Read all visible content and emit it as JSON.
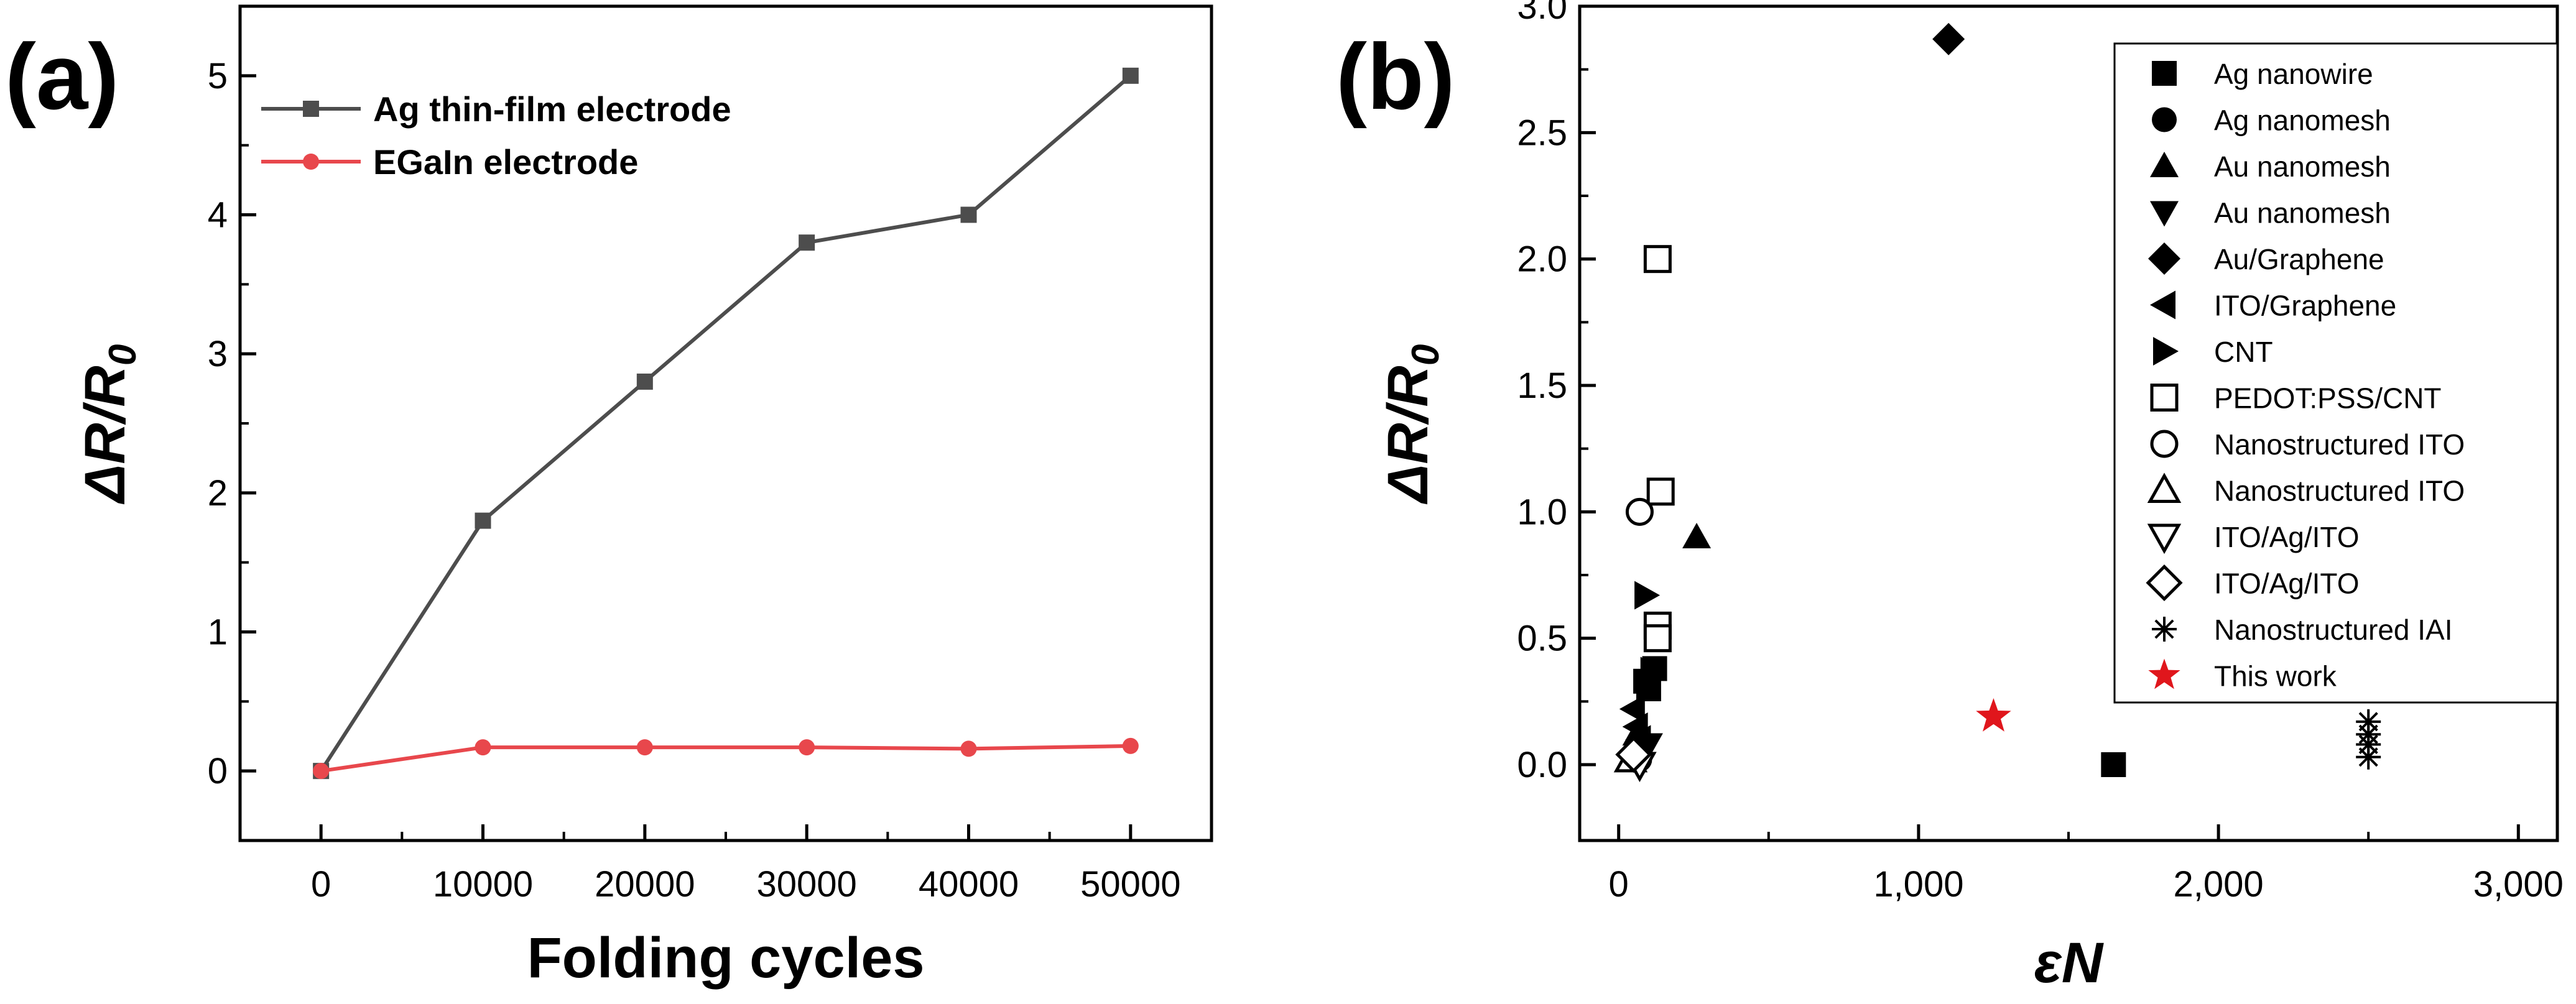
{
  "panels": {
    "a": {
      "label": "(a)"
    },
    "b": {
      "label": "(b)"
    }
  },
  "chart_data": [
    {
      "type": "line",
      "panel": "(a)",
      "xlabel": "Folding cycles",
      "ylabel": "ΔR/R0",
      "ylabel_parts": {
        "delta": "Δ",
        "R": "R",
        "slash": "/",
        "R0": "R",
        "sub": "0"
      },
      "xlim": [
        -5000,
        55000
      ],
      "ylim": [
        -0.5,
        5.5
      ],
      "x": [
        0,
        10000,
        20000,
        30000,
        40000,
        50000
      ],
      "xticks": [
        0,
        10000,
        20000,
        30000,
        40000,
        50000
      ],
      "xtick_labels": [
        "0",
        "10000",
        "20000",
        "30000",
        "40000",
        "50000"
      ],
      "yticks": [
        0,
        1,
        2,
        3,
        4,
        5
      ],
      "ytick_labels": [
        "0",
        "1",
        "2",
        "3",
        "4",
        "5"
      ],
      "legend_position": "top-left",
      "grid": false,
      "series": [
        {
          "name": "Ag thin-film electrode",
          "color": "#4d4d4d",
          "marker": "square",
          "values": [
            0,
            1.8,
            2.8,
            3.8,
            4.0,
            5.0
          ]
        },
        {
          "name": "EGaIn electrode",
          "color": "#e8474c",
          "marker": "circle",
          "values": [
            0,
            0.17,
            0.17,
            0.17,
            0.16,
            0.18
          ]
        }
      ]
    },
    {
      "type": "scatter",
      "panel": "(b)",
      "xlabel": "εN",
      "ylabel": "ΔR/R0",
      "ylabel_parts": {
        "delta": "Δ",
        "R": "R",
        "slash": "/",
        "R0": "R",
        "sub": "0"
      },
      "xlim": [
        -130,
        3130
      ],
      "ylim": [
        -0.3,
        3.0
      ],
      "xticks": [
        0,
        1000,
        2000,
        3000
      ],
      "xtick_labels": [
        "0",
        "1,000",
        "2,000",
        "3,000"
      ],
      "yticks": [
        0,
        0.5,
        1.0,
        1.5,
        2.0,
        2.5,
        3.0
      ],
      "ytick_labels": [
        "0.0",
        "0.5",
        "1.0",
        "1.5",
        "2.0",
        "2.5",
        "3.0"
      ],
      "legend_position": "top-right",
      "grid": false,
      "series": [
        {
          "name": "Ag nanowire",
          "marker": "square-filled",
          "color": "#000000",
          "points": [
            [
              120,
              0.38
            ],
            [
              90,
              0.33
            ],
            [
              100,
              0.3
            ],
            [
              1650,
              0.0
            ]
          ]
        },
        {
          "name": "Ag nanomesh",
          "marker": "circle-filled",
          "color": "#000000",
          "points": [
            [
              60,
              0.06
            ],
            [
              70,
              0.02
            ]
          ]
        },
        {
          "name": "Au nanomesh",
          "marker": "triangle-up-filled",
          "color": "#000000",
          "points": [
            [
              260,
              0.9
            ],
            [
              60,
              0.12
            ]
          ]
        },
        {
          "name": "Au nanomesh",
          "marker": "triangle-down-filled",
          "color": "#000000",
          "points": [
            [
              80,
              0.05
            ],
            [
              100,
              0.08
            ]
          ]
        },
        {
          "name": "Au/Graphene",
          "marker": "diamond-filled",
          "color": "#000000",
          "points": [
            [
              1100,
              2.87
            ]
          ]
        },
        {
          "name": "ITO/Graphene",
          "marker": "triangle-left-filled",
          "color": "#000000",
          "points": [
            [
              50,
              0.22
            ],
            [
              60,
              0.15
            ],
            [
              70,
              0.1
            ]
          ]
        },
        {
          "name": "CNT",
          "marker": "triangle-right-filled",
          "color": "#000000",
          "points": [
            [
              90,
              0.67
            ],
            [
              110,
              0.37
            ]
          ]
        },
        {
          "name": "PEDOT:PSS/CNT",
          "marker": "square-open",
          "color": "#000000",
          "points": [
            [
              130,
              2.0
            ],
            [
              140,
              1.08
            ],
            [
              130,
              0.55
            ],
            [
              130,
              0.5
            ]
          ]
        },
        {
          "name": "Nanostructured ITO",
          "marker": "circle-open",
          "color": "#000000",
          "points": [
            [
              70,
              1.0
            ]
          ]
        },
        {
          "name": "Nanostructured ITO",
          "marker": "triangle-up-open",
          "color": "#000000",
          "points": [
            [
              40,
              0.02
            ]
          ]
        },
        {
          "name": "ITO/Ag/ITO",
          "marker": "triangle-down-open",
          "color": "#000000",
          "points": [
            [
              70,
              0.0
            ]
          ]
        },
        {
          "name": "ITO/Ag/ITO",
          "marker": "diamond-open",
          "color": "#000000",
          "points": [
            [
              50,
              0.04
            ]
          ]
        },
        {
          "name": "Nanostructured IAI",
          "marker": "asterisk",
          "color": "#000000",
          "points": [
            [
              2500,
              0.17
            ],
            [
              2500,
              0.12
            ],
            [
              2500,
              0.08
            ],
            [
              2500,
              0.03
            ]
          ]
        },
        {
          "name": "This work",
          "marker": "star-filled",
          "color": "#e0161c",
          "points": [
            [
              1250,
              0.19
            ]
          ]
        }
      ]
    }
  ]
}
